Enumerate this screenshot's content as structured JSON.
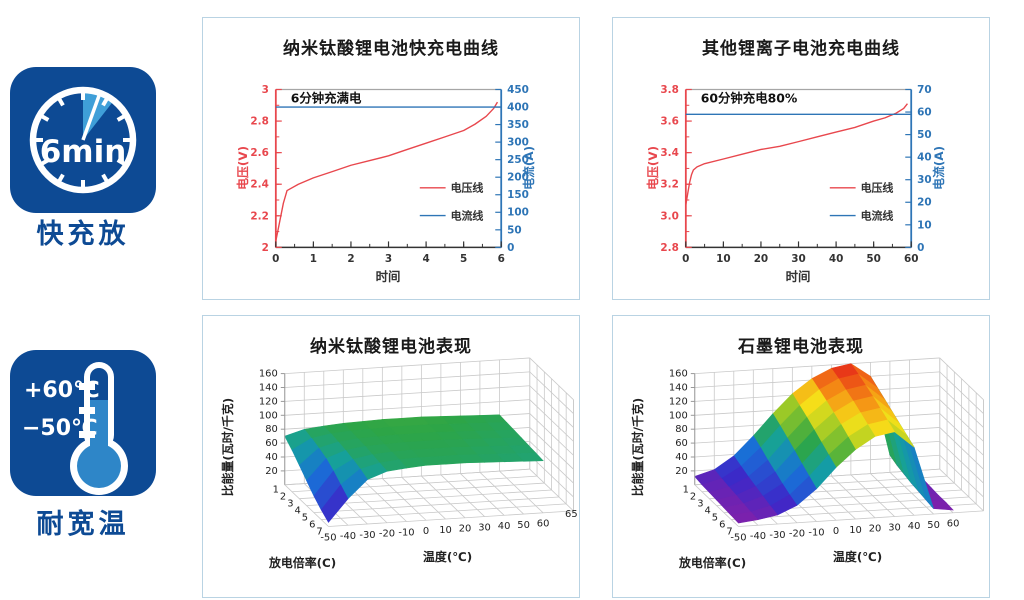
{
  "page": {
    "background": "#ffffff",
    "panel_border": "#b9d3e3"
  },
  "badges": [
    {
      "id": "fast-charge",
      "icon": "clock-6min-icon",
      "clock_text": "6min",
      "label": "快充放",
      "bg": "#0d4a94",
      "accent": "#3f9fd8"
    },
    {
      "id": "wide-temperature",
      "icon": "thermometer-icon",
      "temp_high": "+60℃",
      "temp_low": "−50℃",
      "label": "耐宽温",
      "bg": "#0d4a94",
      "accent": "#2e86c8"
    }
  ],
  "chart_data": [
    {
      "type": "line",
      "title": "纳米钛酸锂电池快充电曲线",
      "annotation": "6分钟充满电",
      "xlabel": "时间",
      "ylabel_left": "电压(V)",
      "ylabel_right": "电流(A)",
      "xlim": [
        0,
        6
      ],
      "x_ticks": [
        0,
        1,
        2,
        3,
        4,
        5,
        6
      ],
      "x_minor": 0.5,
      "ylim_left": [
        2,
        3
      ],
      "left_ticks": [
        "2",
        "2.2",
        "2.4",
        "2.6",
        "2.8",
        "3"
      ],
      "left_minor": 0.1,
      "ylim_right": [
        0,
        450
      ],
      "right_ticks": [
        0,
        50,
        100,
        150,
        200,
        250,
        300,
        350,
        400,
        450
      ],
      "legend": [
        {
          "label": "电压线",
          "color": "#e8474d"
        },
        {
          "label": "电流线",
          "color": "#2e75b6"
        }
      ],
      "series": [
        {
          "name": "电压线",
          "axis": "left",
          "color": "#e8474d",
          "points": [
            [
              0,
              2.04
            ],
            [
              0.1,
              2.16
            ],
            [
              0.2,
              2.28
            ],
            [
              0.3,
              2.36
            ],
            [
              0.6,
              2.4
            ],
            [
              1,
              2.44
            ],
            [
              1.5,
              2.48
            ],
            [
              2,
              2.52
            ],
            [
              2.5,
              2.55
            ],
            [
              3,
              2.58
            ],
            [
              3.5,
              2.62
            ],
            [
              4,
              2.66
            ],
            [
              4.5,
              2.7
            ],
            [
              5,
              2.74
            ],
            [
              5.3,
              2.78
            ],
            [
              5.6,
              2.83
            ],
            [
              5.8,
              2.88
            ],
            [
              5.9,
              2.92
            ]
          ]
        },
        {
          "name": "电流线",
          "axis": "right",
          "color": "#2e75b6",
          "points": [
            [
              0,
              400
            ],
            [
              6,
              400
            ]
          ]
        }
      ]
    },
    {
      "type": "line",
      "title": "其他锂离子电池充电曲线",
      "annotation": "60分钟充电80%",
      "xlabel": "时间",
      "ylabel_left": "电压(V)",
      "ylabel_right": "电流(A)",
      "xlim": [
        0,
        60
      ],
      "x_ticks": [
        0,
        10,
        20,
        30,
        40,
        50,
        60
      ],
      "x_minor": 5,
      "ylim_left": [
        2.8,
        3.8
      ],
      "left_ticks": [
        "2.8",
        "3.0",
        "3.2",
        "3.4",
        "3.6",
        "3.8"
      ],
      "left_minor": 0.1,
      "ylim_right": [
        0,
        70
      ],
      "right_ticks": [
        0,
        10,
        20,
        30,
        40,
        50,
        60,
        70
      ],
      "legend": [
        {
          "label": "电压线",
          "color": "#e8474d"
        },
        {
          "label": "电流线",
          "color": "#2e75b6"
        }
      ],
      "series": [
        {
          "name": "电压线",
          "axis": "left",
          "color": "#e8474d",
          "points": [
            [
              0,
              3.07
            ],
            [
              0.5,
              3.14
            ],
            [
              1,
              3.21
            ],
            [
              1.5,
              3.26
            ],
            [
              2,
              3.29
            ],
            [
              3,
              3.31
            ],
            [
              5,
              3.33
            ],
            [
              10,
              3.36
            ],
            [
              15,
              3.39
            ],
            [
              20,
              3.42
            ],
            [
              25,
              3.44
            ],
            [
              30,
              3.47
            ],
            [
              35,
              3.5
            ],
            [
              40,
              3.53
            ],
            [
              45,
              3.56
            ],
            [
              50,
              3.6
            ],
            [
              53,
              3.62
            ],
            [
              56,
              3.65
            ],
            [
              58,
              3.68
            ],
            [
              59,
              3.71
            ]
          ]
        },
        {
          "name": "电流线",
          "axis": "right",
          "color": "#2e75b6",
          "points": [
            [
              0,
              59
            ],
            [
              60,
              59
            ]
          ]
        }
      ]
    },
    {
      "type": "surface",
      "title": "纳米钛酸锂电池表现",
      "xlabel": "温度(℃)",
      "ylabel": "放电倍率(C)",
      "zlabel": "比能量(瓦时/千克)",
      "x_ticks": [
        -50,
        -40,
        -30,
        -20,
        -10,
        0,
        10,
        20,
        30,
        40,
        50,
        60
      ],
      "y_ticks": [
        1,
        2,
        3,
        4,
        5,
        6,
        7
      ],
      "z_ticks": [
        20,
        40,
        60,
        80,
        100,
        120,
        140,
        160
      ],
      "zlim": [
        0,
        160
      ],
      "side_label": "65",
      "z_values": [
        [
          70,
          78,
          81,
          83,
          84,
          85,
          85,
          85,
          84,
          83,
          82,
          81
        ],
        [
          60,
          75,
          80,
          82,
          83,
          84,
          84,
          84,
          83,
          82,
          81,
          80
        ],
        [
          48,
          71,
          78,
          81,
          82,
          83,
          83,
          83,
          82,
          81,
          80,
          79
        ],
        [
          36,
          66,
          76,
          80,
          81,
          82,
          82,
          82,
          81,
          80,
          79,
          78
        ],
        [
          24,
          58,
          73,
          78,
          80,
          81,
          81,
          81,
          80,
          79,
          78,
          77
        ],
        [
          14,
          48,
          69,
          76,
          79,
          80,
          80,
          80,
          79,
          78,
          77,
          76
        ],
        [
          6,
          38,
          64,
          74,
          77,
          79,
          79,
          79,
          78,
          77,
          76,
          75
        ]
      ]
    },
    {
      "type": "surface",
      "title": "石墨锂电池表现",
      "xlabel": "温度(℃)",
      "ylabel": "放电倍率(C)",
      "zlabel": "比能量(瓦时/千克)",
      "x_ticks": [
        -50,
        -40,
        -30,
        -20,
        -10,
        0,
        10,
        20,
        30,
        40,
        50,
        60
      ],
      "y_ticks": [
        1,
        2,
        3,
        4,
        5,
        6,
        7
      ],
      "z_ticks": [
        20,
        40,
        60,
        80,
        100,
        120,
        140,
        160
      ],
      "zlim": [
        0,
        160
      ],
      "side_label": "",
      "z_values": [
        [
          12,
          20,
          38,
          65,
          95,
          122,
          142,
          155,
          160,
          140,
          25,
          10
        ],
        [
          10,
          17,
          33,
          58,
          88,
          115,
          136,
          150,
          155,
          133,
          20,
          8
        ],
        [
          9,
          15,
          28,
          50,
          80,
          108,
          130,
          144,
          149,
          126,
          17,
          7
        ],
        [
          8,
          13,
          24,
          43,
          72,
          100,
          123,
          138,
          143,
          119,
          14,
          6
        ],
        [
          7,
          11,
          20,
          36,
          63,
          92,
          116,
          131,
          136,
          112,
          12,
          5
        ],
        [
          6,
          9,
          16,
          30,
          55,
          84,
          108,
          124,
          129,
          105,
          10,
          5
        ],
        [
          5,
          8,
          13,
          25,
          47,
          76,
          100,
          117,
          122,
          98,
          8,
          4
        ]
      ]
    }
  ]
}
